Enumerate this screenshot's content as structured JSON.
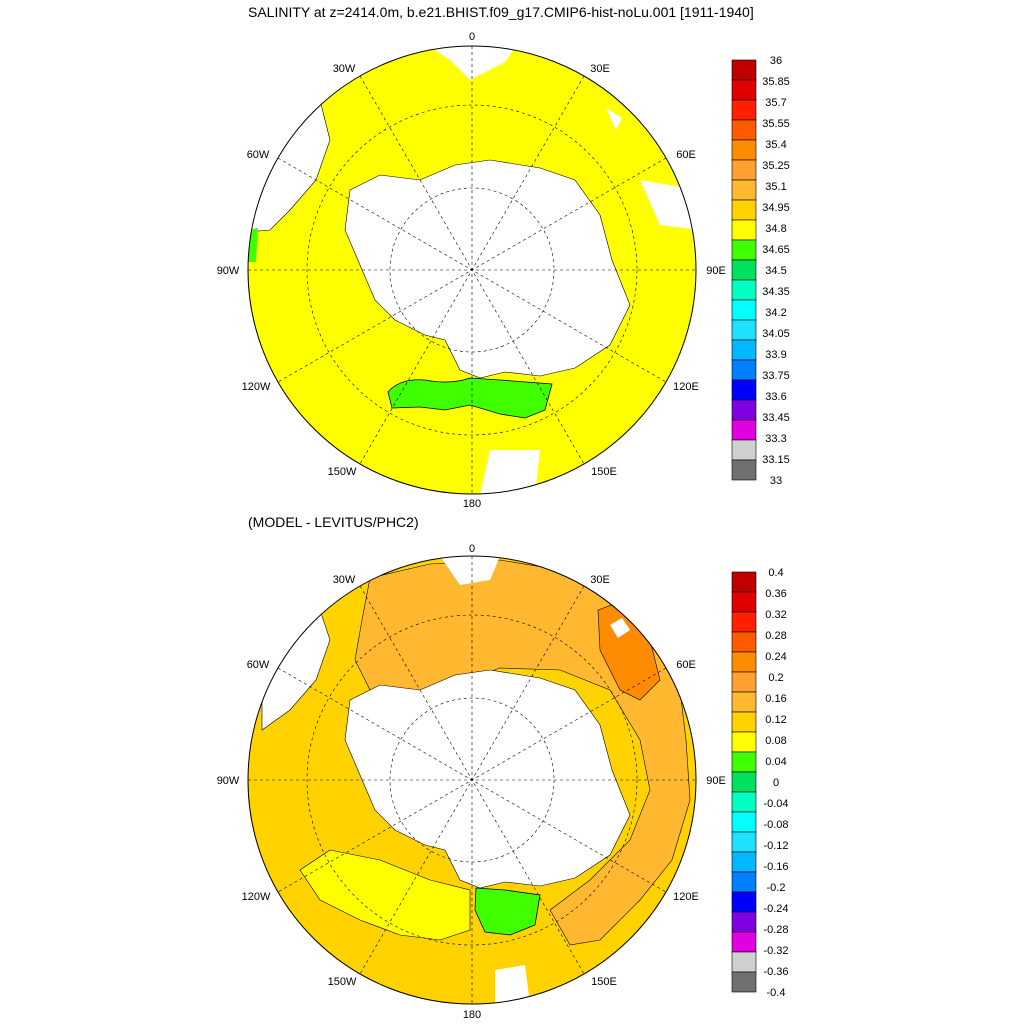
{
  "top_panel": {
    "title": "SALINITY at z=2414.0m, b.e21.BHIST.f09_g17.CMIP6-hist-noLu.001 [1911-1940]",
    "lon_labels": {
      "0": "0",
      "30E": "30E",
      "60E": "60E",
      "90E": "90E",
      "120E": "120E",
      "150E": "150E",
      "180": "180",
      "150W": "150W",
      "120W": "120W",
      "90W": "90W",
      "60W": "60W",
      "30W": "30W"
    },
    "colorbar": {
      "levels": [
        "36",
        "35.85",
        "35.7",
        "35.55",
        "35.4",
        "35.25",
        "35.1",
        "34.95",
        "34.8",
        "34.65",
        "34.5",
        "34.35",
        "34.2",
        "34.05",
        "33.9",
        "33.75",
        "33.6",
        "33.45",
        "33.3",
        "33.15",
        "33"
      ],
      "colors": [
        "#c00000",
        "#e00000",
        "#ff2000",
        "#ff5a00",
        "#ff8c00",
        "#ffa030",
        "#ffb830",
        "#ffd200",
        "#ffff00",
        "#40ff00",
        "#00e060",
        "#00ffc0",
        "#00ffff",
        "#20e0ff",
        "#00b8ff",
        "#0080ff",
        "#0000ff",
        "#8000e0",
        "#e000e0",
        "#d0d0d0",
        "#707070"
      ]
    }
  },
  "bottom_panel": {
    "title": "(MODEL - LEVITUS/PHC2)",
    "lon_labels": {
      "0": "0",
      "30E": "30E",
      "60E": "60E",
      "90E": "90E",
      "120E": "120E",
      "150E": "150E",
      "180": "180",
      "150W": "150W",
      "120W": "120W",
      "90W": "90W",
      "60W": "60W",
      "30W": "30W"
    },
    "colorbar": {
      "levels": [
        "0.4",
        "0.36",
        "0.32",
        "0.28",
        "0.24",
        "0.2",
        "0.16",
        "0.12",
        "0.08",
        "0.04",
        "0",
        "-0.04",
        "-0.08",
        "-0.12",
        "-0.16",
        "-0.2",
        "-0.24",
        "-0.28",
        "-0.32",
        "-0.36",
        "-0.4"
      ],
      "colors": [
        "#c00000",
        "#e00000",
        "#ff2000",
        "#ff5a00",
        "#ff8c00",
        "#ffa030",
        "#ffb830",
        "#ffd200",
        "#ffff00",
        "#40ff00",
        "#00e060",
        "#00ffc0",
        "#00ffff",
        "#20e0ff",
        "#00b8ff",
        "#0080ff",
        "#0000ff",
        "#8000e0",
        "#e000e0",
        "#d0d0d0",
        "#707070"
      ]
    }
  },
  "colors": {
    "ocean_top": "#ffff00",
    "green_anomaly": "#40ff00",
    "ocean_bottom_main": "#ffd200",
    "ocean_bottom_orange": "#ffb830",
    "ocean_bottom_darker": "#ff8c00",
    "land": "#ffffff",
    "outline": "#000000"
  }
}
